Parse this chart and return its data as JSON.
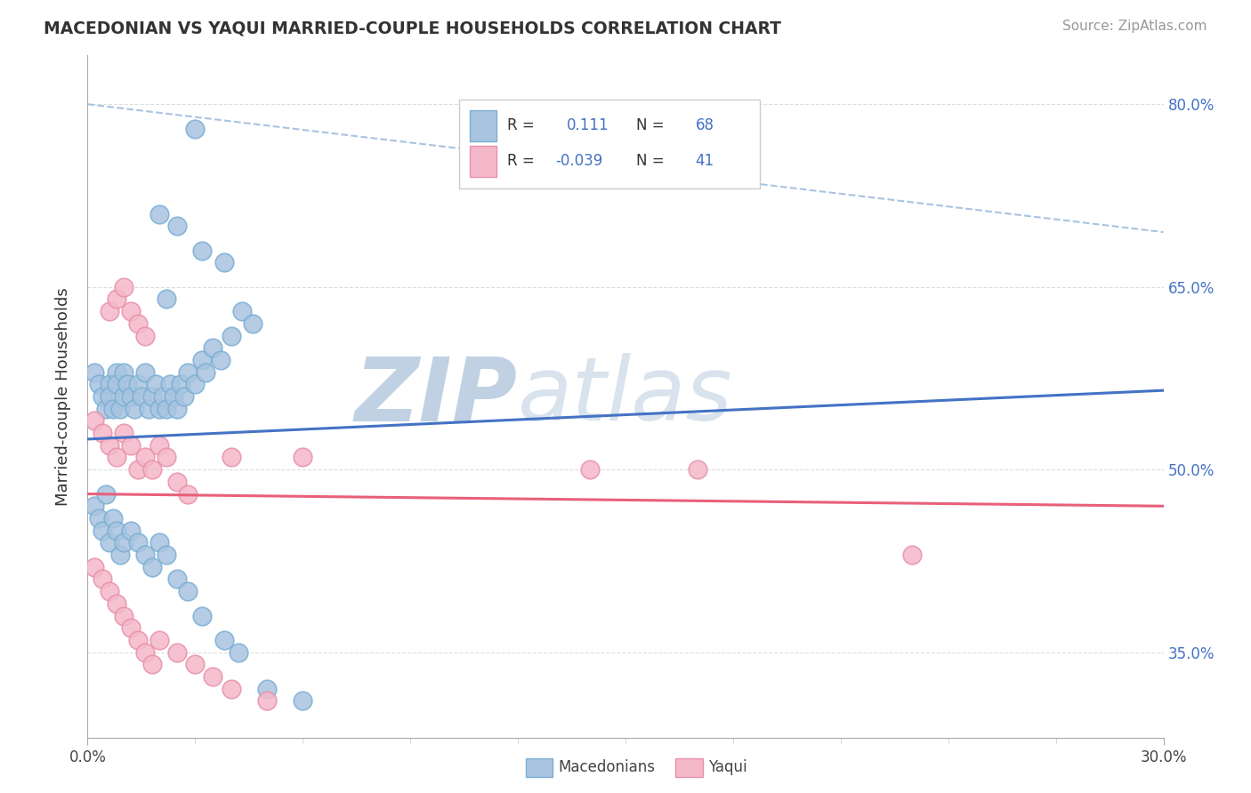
{
  "title": "MACEDONIAN VS YAQUI MARRIED-COUPLE HOUSEHOLDS CORRELATION CHART",
  "source": "Source: ZipAtlas.com",
  "ylabel": "Married-couple Households",
  "xlim": [
    0.0,
    0.3
  ],
  "ylim": [
    0.28,
    0.84
  ],
  "yticks": [
    0.35,
    0.5,
    0.65,
    0.8
  ],
  "ytick_labels": [
    "35.0%",
    "50.0%",
    "65.0%",
    "80.0%"
  ],
  "macedonian_R": 0.111,
  "macedonian_N": 68,
  "yaqui_R": -0.039,
  "yaqui_N": 41,
  "blue_color": "#a8c4e0",
  "blue_edge_color": "#7bafd4",
  "pink_color": "#f5b8cb",
  "pink_edge_color": "#e891aa",
  "blue_line_color": "#4472c4",
  "pink_line_color": "#e8607a",
  "dash_line_color": "#a8c4e0",
  "watermark_color": "#d0dce8",
  "background_color": "#ffffff",
  "grid_color": "#dddddd",
  "legend_text_color": "#4472c4",
  "mac_line_y0": 0.525,
  "mac_line_y1": 0.565,
  "yaq_line_y0": 0.48,
  "yaq_line_y1": 0.47,
  "dash_line_y0": 0.8,
  "dash_line_y1": 0.695
}
